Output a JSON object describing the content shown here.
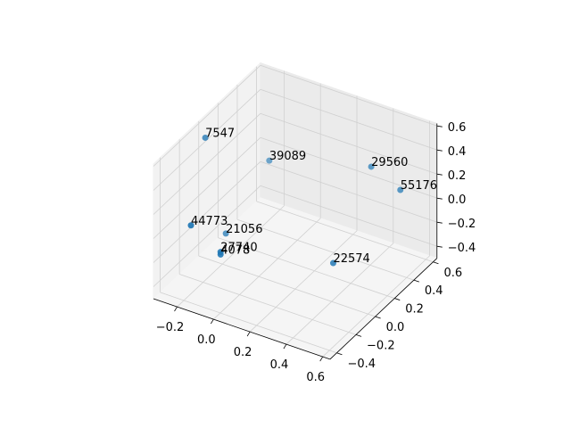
{
  "chart_data": {
    "type": "scatter3d",
    "points": [
      {
        "label": "7547",
        "x": -0.31,
        "y": 0.03,
        "z": 0.47
      },
      {
        "label": "39089",
        "x": -0.17,
        "y": 0.43,
        "z": 0.05
      },
      {
        "label": "29560",
        "x": 0.39,
        "y": 0.43,
        "z": 0.29
      },
      {
        "label": "55176",
        "x": 0.55,
        "y": 0.43,
        "z": 0.18
      },
      {
        "label": "44773",
        "x": -0.23,
        "y": -0.27,
        "z": 0.01
      },
      {
        "label": "21056",
        "x": -0.25,
        "y": 0.13,
        "z": -0.37
      },
      {
        "label": "27740",
        "x": -0.12,
        "y": -0.17,
        "z": -0.23
      },
      {
        "label": "4078",
        "x": -0.12,
        "y": -0.17,
        "z": -0.25
      },
      {
        "label": "22574",
        "x": 0.34,
        "y": 0.13,
        "z": -0.31
      }
    ],
    "color": "#1f77b4",
    "xlim": [
      -0.33,
      0.64
    ],
    "ylim": [
      -0.47,
      0.64
    ],
    "zlim": [
      -0.5,
      0.62
    ],
    "xticks": [
      {
        "value": -0.2,
        "label": "−0.2"
      },
      {
        "value": 0,
        "label": "0.0"
      },
      0.2,
      0.4,
      0.6
    ],
    "yticks": [
      {
        "value": -0.4,
        "label": "−0.4"
      },
      {
        "value": -0.2,
        "label": "−0.2"
      },
      {
        "value": 0,
        "label": "0.0"
      },
      0.2,
      0.4,
      0.6
    ],
    "zticks": [
      {
        "value": -0.4,
        "label": "−0.4"
      },
      {
        "value": -0.2,
        "label": "−0.2"
      },
      {
        "value": 0,
        "label": "0.0"
      },
      0.2,
      0.4,
      0.6
    ],
    "grid": true
  }
}
